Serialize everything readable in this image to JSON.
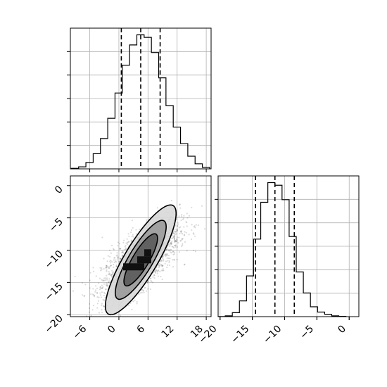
{
  "chart_data": {
    "type": "corner",
    "grid": true,
    "params": [
      {
        "range": [
          -10,
          19
        ],
        "ticks": [
          -6,
          0,
          6,
          12,
          18
        ],
        "tick_labels": [
          "−6",
          "0",
          "6",
          "12",
          "18"
        ],
        "quantiles": [
          0.5,
          4.5,
          8.5
        ],
        "hist": {
          "edges": [
            -9.8,
            -8.3,
            -6.8,
            -5.3,
            -3.8,
            -2.3,
            -0.8,
            0.7,
            2.2,
            3.7,
            5.2,
            6.7,
            8.2,
            9.7,
            11.2,
            12.7,
            14.2,
            15.7,
            17.2,
            18.7
          ],
          "counts": [
            2,
            8,
            25,
            60,
            120,
            200,
            300,
            410,
            490,
            530,
            520,
            460,
            360,
            250,
            165,
            100,
            50,
            20,
            6
          ]
        }
      },
      {
        "range": [
          -20.3,
          1.5
        ],
        "ticks": [
          -20,
          -15,
          -10,
          -5,
          0
        ],
        "tick_labels": [
          "−20",
          "−15",
          "−10",
          "−5",
          "0"
        ],
        "quantiles": [
          -14.5,
          -11.5,
          -8.5
        ],
        "hist": {
          "edges": [
            -20.3,
            -19.2,
            -18.1,
            -17.0,
            -15.9,
            -14.8,
            -13.7,
            -12.6,
            -11.5,
            -10.4,
            -9.3,
            -8.2,
            -7.1,
            -6.0,
            -4.9,
            -3.8,
            -2.7,
            -1.6,
            -0.5
          ],
          "counts": [
            1,
            6,
            30,
            120,
            310,
            590,
            870,
            1020,
            1000,
            890,
            610,
            340,
            180,
            75,
            35,
            18,
            6,
            2
          ]
        }
      }
    ],
    "scatter_2d": {
      "mean": [
        4.5,
        -11.5
      ],
      "contours": [
        {
          "rx": 11.0,
          "ry": 3.2,
          "angle_deg": 45
        },
        {
          "rx": 7.9,
          "ry": 2.35,
          "angle_deg": 45
        },
        {
          "rx": 5.2,
          "ry": 1.6,
          "angle_deg": 45
        }
      ]
    }
  }
}
